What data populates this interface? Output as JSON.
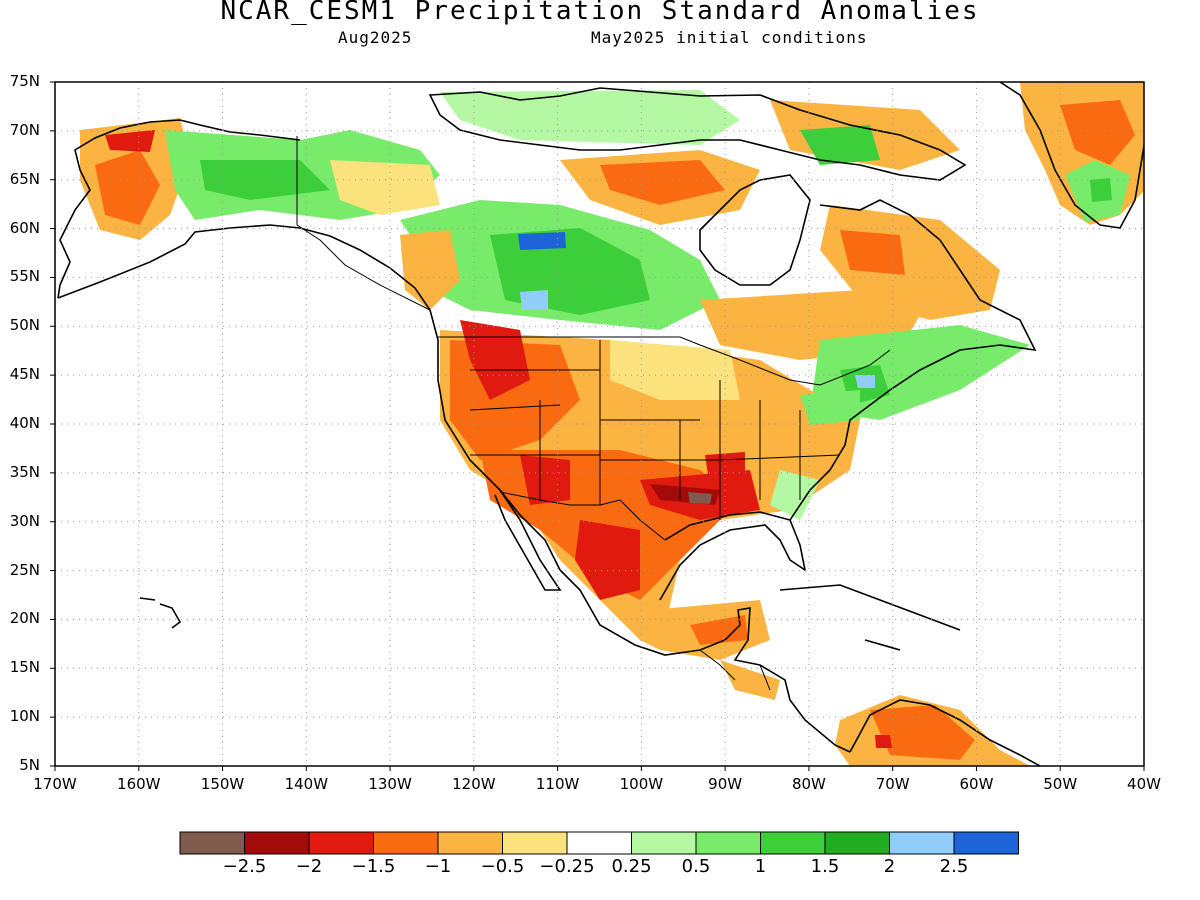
{
  "title": "NCAR_CESM1 Precipitation Standard Anomalies",
  "subtitle_left": "Aug2025",
  "subtitle_right": "May2025 initial conditions",
  "map": {
    "lon_range": [
      -170,
      -40
    ],
    "lat_range": [
      5,
      75
    ],
    "grid": "dotted",
    "lat_labels": [
      "75N",
      "70N",
      "65N",
      "60N",
      "55N",
      "50N",
      "45N",
      "40N",
      "35N",
      "30N",
      "25N",
      "20N",
      "15N",
      "10N",
      "5N"
    ],
    "lon_labels": [
      "170W",
      "160W",
      "150W",
      "140W",
      "130W",
      "120W",
      "110W",
      "100W",
      "90W",
      "80W",
      "70W",
      "60W",
      "50W",
      "40W"
    ]
  },
  "colorbar": {
    "colors": [
      "#7f5a4d",
      "#a50a0a",
      "#e01a0e",
      "#fa6a10",
      "#fbb441",
      "#fbe27c",
      "#ffffff",
      "#b4f8a4",
      "#78ec6a",
      "#3ccf3a",
      "#20ad20",
      "#90cdf8",
      "#1c64d8"
    ],
    "labels": [
      "−2.5",
      "−2",
      "−1.5",
      "−1",
      "−0.5",
      "−0.25",
      "0.25",
      "0.5",
      "1",
      "1.5",
      "2",
      "2.5"
    ]
  }
}
